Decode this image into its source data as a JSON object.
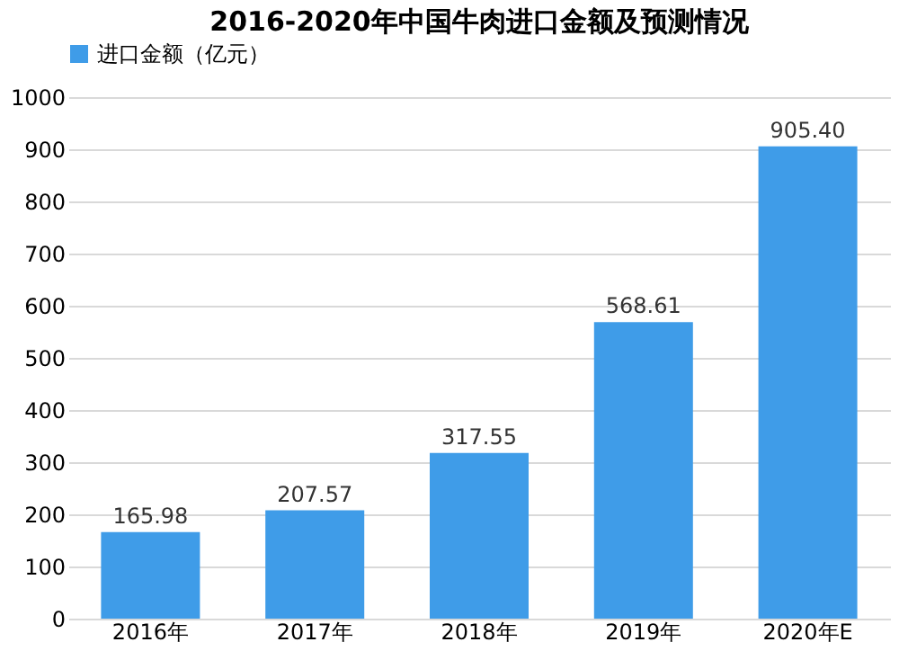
{
  "chart_data": {
    "type": "bar",
    "title": "2016-2020年中国牛肉进口金额及预测情况",
    "categories": [
      "2016年",
      "2017年",
      "2018年",
      "2019年",
      "2020年E"
    ],
    "series": [
      {
        "name": "进口金额（亿元）",
        "color": "#3f9ce8",
        "values": [
          165.98,
          207.57,
          317.55,
          568.61,
          905.4
        ],
        "value_labels": [
          "165.98",
          "207.57",
          "317.55",
          "568.61",
          "905.40"
        ]
      }
    ],
    "ylim": [
      0,
      1000
    ],
    "yticks": [
      0,
      100,
      200,
      300,
      400,
      500,
      600,
      700,
      800,
      900,
      1000
    ],
    "grid": "y",
    "legend": "top"
  }
}
